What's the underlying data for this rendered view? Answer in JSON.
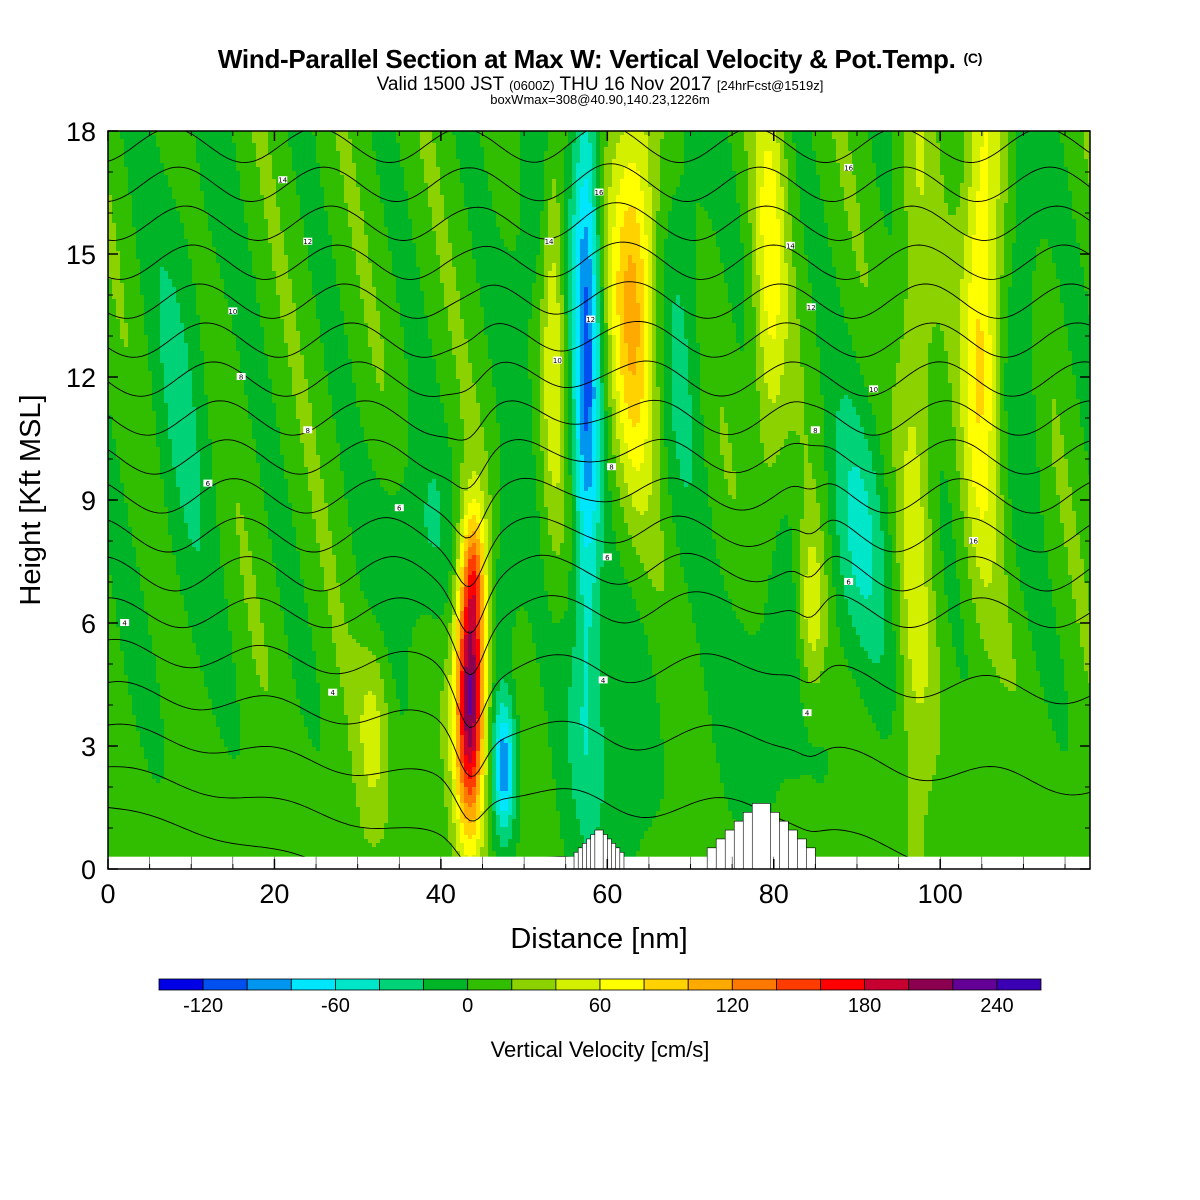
{
  "title": {
    "main": "Wind-Parallel Section at Max W: Vertical Velocity & Pot.Temp.",
    "copyright": "(C)",
    "valid_prefix": "Valid 1500 JST",
    "valid_utc": "(0600Z)",
    "valid_date": "THU 16 Nov 2017",
    "forecast": "[24hrFcst@1519z]",
    "box": "boxWmax=308@40.90,140.23,1226m"
  },
  "chart_data": {
    "type": "heatmap",
    "xlabel": "Distance [nm]",
    "ylabel": "Height [Kft MSL]",
    "xlim": [
      0,
      118
    ],
    "ylim": [
      0,
      18
    ],
    "x_ticks": [
      "0",
      "20",
      "40",
      "60",
      "80",
      "100"
    ],
    "y_ticks": [
      "0",
      "3",
      "6",
      "9",
      "12",
      "15",
      "18"
    ],
    "colorbar": {
      "title": "Vertical Velocity [cm/s]",
      "tick_labels": [
        "-120",
        "-60",
        "0",
        "60",
        "120",
        "180",
        "240"
      ],
      "min": -140,
      "max": 260,
      "bin": 20,
      "colors": [
        "#0000e6",
        "#0050f0",
        "#0096f0",
        "#00e6ff",
        "#00e6c8",
        "#00d278",
        "#00b428",
        "#32be00",
        "#8cd200",
        "#d2f000",
        "#ffff00",
        "#ffd200",
        "#ffaa00",
        "#ff7800",
        "#ff3c00",
        "#ff0000",
        "#c80032",
        "#8c0050",
        "#640096",
        "#3c00b4"
      ]
    },
    "vertical_velocity_features": [
      {
        "x": 43.5,
        "y_range": [
          0.5,
          8.2
        ],
        "max": 240,
        "note": "max updraft"
      },
      {
        "x": 47.5,
        "y_range": [
          0.8,
          4.2
        ],
        "min": -100
      },
      {
        "x": 57.5,
        "y_range": [
          5.5,
          18
        ],
        "min": -100
      },
      {
        "x": 63.0,
        "y_range": [
          9,
          18
        ],
        "max": 100
      },
      {
        "x": 84.5,
        "y_range": [
          5,
          8
        ],
        "max": 100
      },
      {
        "x": 105.0,
        "y_range": [
          10,
          18
        ],
        "max": 80
      }
    ],
    "theta_contour_labels": [
      "4",
      "4",
      "4",
      "4",
      "6",
      "6",
      "6",
      "6",
      "8",
      "8",
      "8",
      "8",
      "10",
      "10",
      "10",
      "12",
      "12",
      "12",
      "14",
      "14",
      "14",
      "16",
      "16",
      "16"
    ],
    "terrain": [
      {
        "x": [
          56,
          62
        ],
        "height": 0.95
      },
      {
        "x": [
          72,
          85
        ],
        "height": 1.6
      }
    ]
  }
}
